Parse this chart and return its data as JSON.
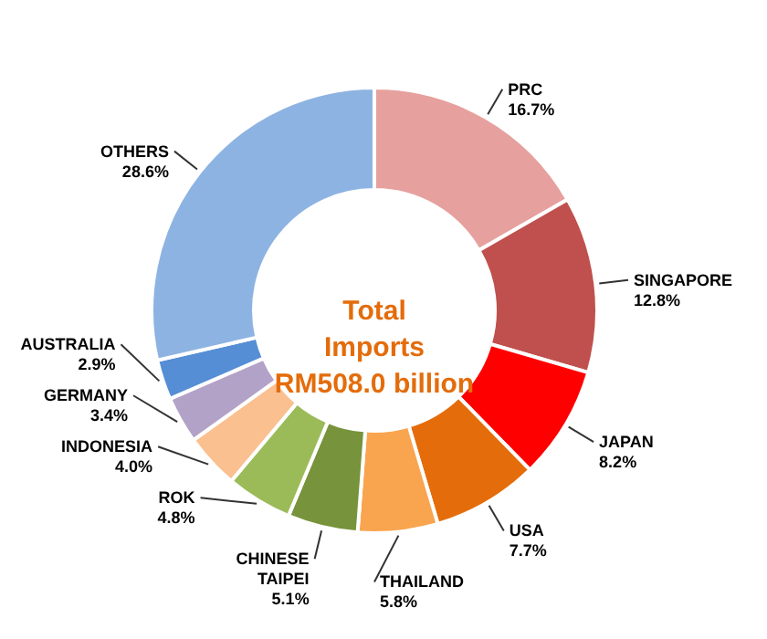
{
  "chart_data": {
    "type": "donut",
    "title": "Total\nImports\nRM508.0 billion",
    "categories": [
      "PRC",
      "SINGAPORE",
      "JAPAN",
      "USA",
      "THAILAND",
      "CHINESE TAIPEI",
      "ROK",
      "INDONESIA",
      "GERMANY",
      "AUSTRALIA",
      "OTHERS"
    ],
    "values": [
      16.7,
      12.8,
      8.2,
      7.7,
      5.8,
      5.1,
      4.8,
      4.0,
      3.4,
      2.9,
      28.6
    ],
    "value_labels": [
      "16.7%",
      "12.8%",
      "8.2%",
      "7.7%",
      "5.8%",
      "5.1%",
      "4.8%",
      "4.0%",
      "3.4%",
      "2.9%",
      "28.6%"
    ],
    "colors": [
      "#e6a09e",
      "#c0504d",
      "#ff0000",
      "#e46c0a",
      "#f9a44f",
      "#77933c",
      "#9bbb59",
      "#fac090",
      "#b3a2c7",
      "#558ed5",
      "#8db3e2"
    ]
  }
}
